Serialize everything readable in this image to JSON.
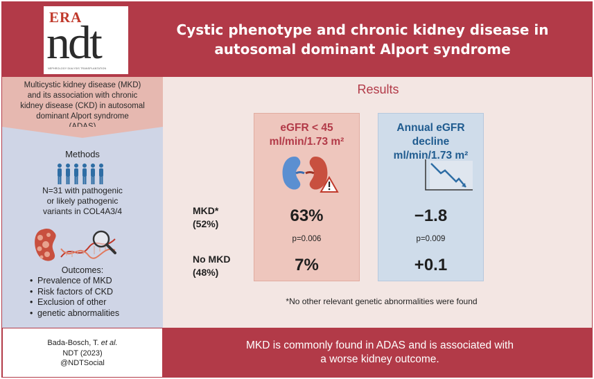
{
  "logo": {
    "brand": "ERA",
    "mark": "ndt",
    "tagline": "NEPHROLOGY DIALYSIS TRANSPLANTATION"
  },
  "title": {
    "line1": "Cystic phenotype and chronic kidney disease in",
    "line2": "autosomal dominant Alport syndrome"
  },
  "intro": {
    "line1": "Multicystic kidney disease (MKD)",
    "line2": "and its association with chronic",
    "line3": "kidney disease (CKD) in autosomal",
    "line4": "dominant Alport syndrome",
    "line5": "(ADAS)"
  },
  "methods": {
    "title": "Methods",
    "line1": "N=31 with pathogenic",
    "line2": "or likely pathogenic",
    "line3": "variants in COL4A3/4"
  },
  "outcomes": {
    "title": "Outcomes:",
    "items": [
      "Prevalence of MKD",
      "Risk factors of CKD",
      "Exclusion of other",
      "genetic abnormalities"
    ]
  },
  "results": {
    "title": "Results",
    "egfr_panel": {
      "line1": "eGFR < 45",
      "line2": "ml/min/1.73 m²",
      "mkd_value": "63%",
      "p_value": "p=0.006",
      "no_mkd_value": "7%"
    },
    "decline_panel": {
      "line1": "Annual eGFR decline",
      "line2": "ml/min/1.73 m²",
      "mkd_value": "−1.8",
      "p_value": "p=0.009",
      "no_mkd_value": "+0.1"
    },
    "rows": {
      "mkd": {
        "label": "MKD*",
        "pct": "(52%)"
      },
      "no_mkd": {
        "label": "No MKD",
        "pct": "(48%)"
      }
    },
    "footnote": "*No other relevant genetic abnormalities were found"
  },
  "citation": {
    "line1_author": "Bada-Bosch, T. ",
    "line1_etal": "et al.",
    "line2": "NDT (2023)",
    "line3": "@NDTSocial"
  },
  "conclusion": {
    "line1": "MKD is commonly found in ADAS and is associated with",
    "line2": "a worse kidney outcome."
  },
  "colors": {
    "brand_red": "#b23a48",
    "pink_panel": "#eec6bd",
    "blue_panel": "#cfdcea",
    "left_blue": "#cfd5e6"
  }
}
